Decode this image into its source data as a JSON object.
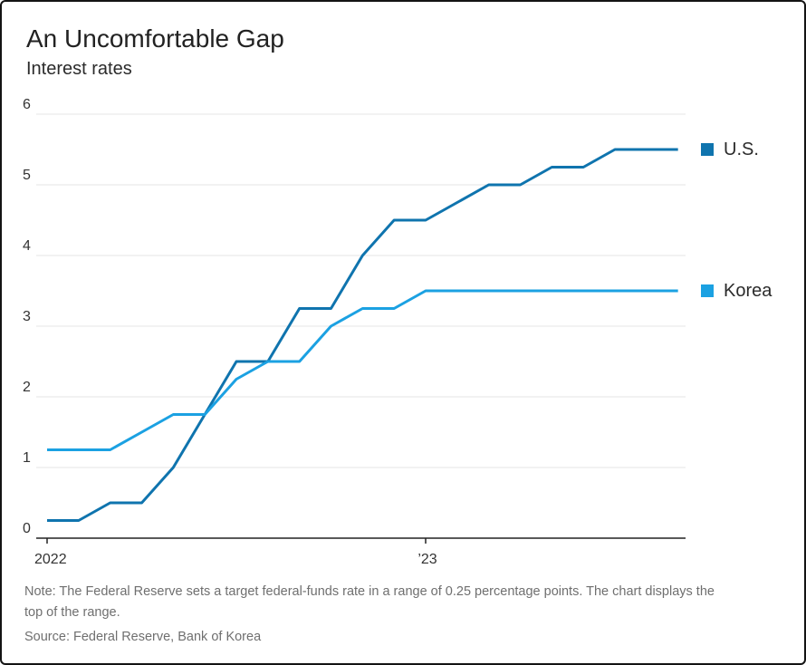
{
  "header": {
    "title": "An Uncomfortable Gap",
    "subtitle": "Interest rates"
  },
  "chart_data": {
    "type": "line",
    "title": "An Uncomfortable Gap",
    "subtitle": "Interest rates",
    "x_unit": "month",
    "x_range": "Jan 2022 to Sep 2023, monthly",
    "x_tick_labels": [
      "2022",
      "’23"
    ],
    "x_tick_month_indices": [
      0,
      12
    ],
    "ylim": [
      0,
      6
    ],
    "y_ticks": [
      0,
      1,
      2,
      3,
      4,
      5,
      6
    ],
    "grid": true,
    "legend_position": "right, aligned to line ends",
    "series": [
      {
        "name": "U.S.",
        "color": "#0f74ae",
        "values": [
          0.25,
          0.25,
          0.5,
          0.5,
          1.0,
          1.75,
          2.5,
          2.5,
          3.25,
          3.25,
          4.0,
          4.5,
          4.5,
          4.75,
          5.0,
          5.0,
          5.25,
          5.25,
          5.5,
          5.5,
          5.5
        ]
      },
      {
        "name": "Korea",
        "color": "#1ba1e2",
        "values": [
          1.25,
          1.25,
          1.25,
          1.5,
          1.75,
          1.75,
          2.25,
          2.5,
          2.5,
          3.0,
          3.25,
          3.25,
          3.5,
          3.5,
          3.5,
          3.5,
          3.5,
          3.5,
          3.5,
          3.5,
          3.5
        ]
      }
    ]
  },
  "footer": {
    "note": "Note: The Federal Reserve sets a target federal-funds rate in a range of 0.25 percentage points. The chart displays the top of the range.",
    "source": "Source: Federal Reserve, Bank of Korea"
  },
  "colors": {
    "us_line": "#0f74ae",
    "korea_line": "#1ba1e2",
    "grid": "#e4e4e4",
    "axis": "#222222",
    "axis_text": "#333333",
    "muted_text": "#6f6f6f"
  }
}
